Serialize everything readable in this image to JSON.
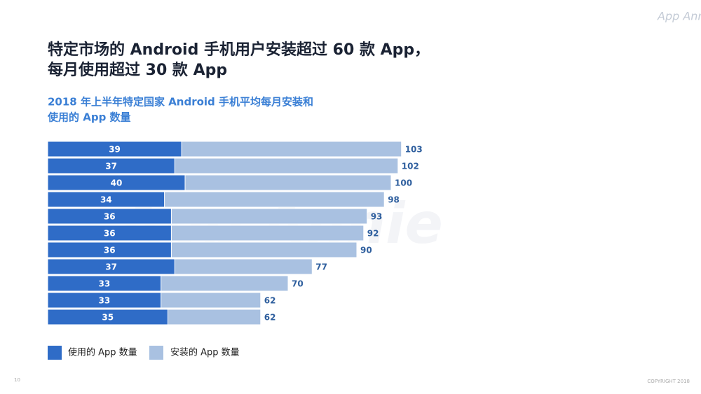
{
  "chart_data": {
    "type": "bar",
    "orientation": "horizontal",
    "title": [
      "特定市场的 Android 手机用户安装超过 60 款 App，",
      "每月使用超过 30 款 App"
    ],
    "subtitle": [
      "2018 年上半年特定国家 Android 手机平均每月安装和",
      "使用的 App 数量"
    ],
    "series": [
      {
        "name": "使用的 App 数量",
        "color": "#2f6cc7",
        "values": [
          39,
          37,
          40,
          34,
          36,
          36,
          36,
          37,
          33,
          33,
          35
        ]
      },
      {
        "name": "安装的 App 数量",
        "color": "#a9c1e1",
        "values": [
          103,
          102,
          100,
          98,
          93,
          92,
          90,
          77,
          70,
          62,
          62
        ]
      }
    ]
  },
  "logo": "App Annie",
  "watermark": "App Annie",
  "page_number": "10",
  "copyright": "COPYRIGHT 2018"
}
